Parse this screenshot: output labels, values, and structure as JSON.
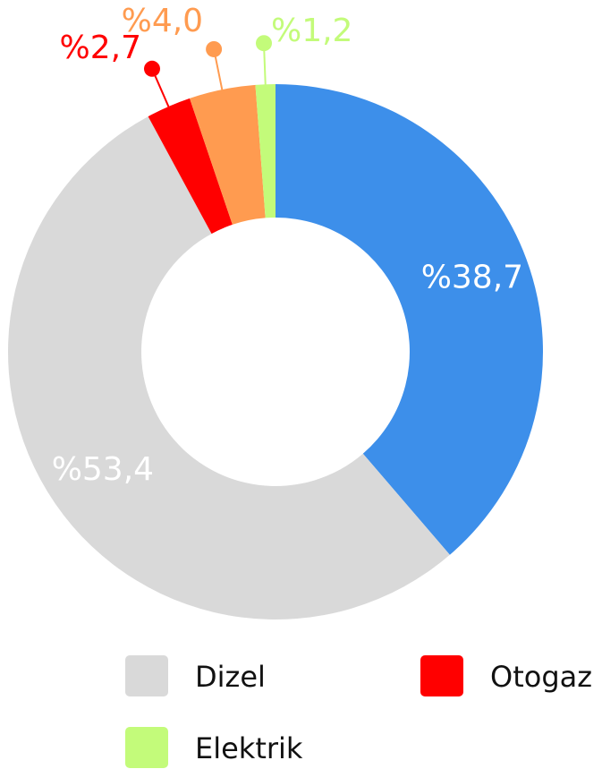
{
  "chart_data": {
    "type": "donut",
    "categories": [
      null,
      "Dizel",
      "Otogaz",
      null,
      "Elektrik"
    ],
    "values": [
      38.7,
      53.4,
      2.7,
      4.0,
      1.2
    ],
    "value_labels": [
      "%38,7",
      "%53,4",
      "%2,7",
      "%4,0",
      "%1,2"
    ],
    "colors": [
      "#3d8fea",
      "#d9d9d9",
      "#ff0000",
      "#ff9b50",
      "#c3fb7a"
    ],
    "legend": "bottom"
  }
}
